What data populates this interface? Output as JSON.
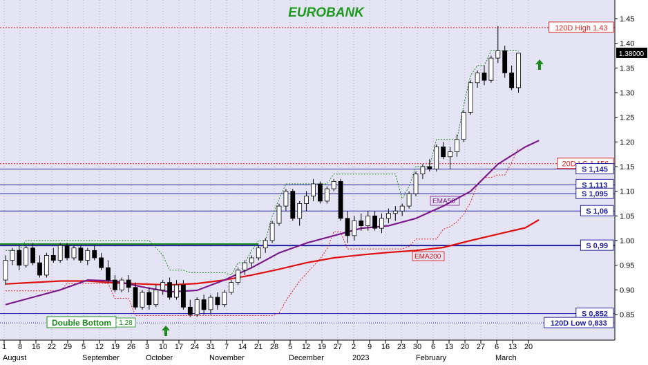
{
  "chart_data": {
    "type": "candlestick",
    "title": "EUROBANK",
    "title_color": "#1e9a1e",
    "ylim": [
      0.805,
      1.475
    ],
    "y_ticks": [
      "1.45",
      "1.40",
      "1.35",
      "1.30",
      "1.25",
      "1.20",
      "1.15",
      "1.10",
      "1.05",
      "1.00",
      "0.95",
      "0.90",
      "0.85"
    ],
    "last_price": "1.38000",
    "colors": {
      "background": "#e4e4f4",
      "up": "#ffffff",
      "down": "#000000",
      "ema50": "#7b1a8c",
      "ema200": "#e01010",
      "support": "#2020a0",
      "resistance_red": "#e02020",
      "trail": "#e02020",
      "trail_green": "#1a8a1a",
      "arrow": "#1a8a1a"
    },
    "x_ticks": [
      "1",
      "8",
      "16",
      "22",
      "29",
      "5",
      "12",
      "19",
      "26",
      "3",
      "10",
      "17",
      "24",
      "31",
      "7",
      "14",
      "21",
      "28",
      "5",
      "12",
      "19",
      "27",
      "2",
      "9",
      "16",
      "23",
      "30",
      "6",
      "13",
      "20",
      "27",
      "6",
      "13",
      "20"
    ],
    "month_labels": [
      {
        "label": "August",
        "tick": 0
      },
      {
        "label": "September",
        "tick": 5
      },
      {
        "label": "October",
        "tick": 9
      },
      {
        "label": "November",
        "tick": 13
      },
      {
        "label": "December",
        "tick": 18
      },
      {
        "label": "2023",
        "tick": 22
      },
      {
        "label": "February",
        "tick": 26
      },
      {
        "label": "March",
        "tick": 31
      }
    ],
    "levels": [
      {
        "label": "120D High 1,43",
        "value": 1.432,
        "style": "red-dotted"
      },
      {
        "label": "20D LC 1.156",
        "value": 1.156,
        "style": "red-dotted"
      },
      {
        "label": "S 1,145",
        "value": 1.145,
        "style": "support"
      },
      {
        "label": "S 1,113",
        "value": 1.113,
        "style": "support"
      },
      {
        "label": "S 1,095",
        "value": 1.095,
        "style": "support"
      },
      {
        "label": "S 1,06",
        "value": 1.06,
        "style": "support"
      },
      {
        "label": "S 0,99",
        "value": 0.99,
        "style": "support-thick"
      },
      {
        "label": "S 0,852",
        "value": 0.852,
        "style": "support"
      },
      {
        "label": "120D Low 0,833",
        "value": 0.833,
        "style": "blue-dotted"
      }
    ],
    "annotations": {
      "double_bottom": "Double Bottom",
      "double_bottom_value": "1,28",
      "ema50_label": "EMA50",
      "ema200_label": "EMA200"
    },
    "ema200": [
      [
        0,
        0.912
      ],
      [
        4,
        0.915
      ],
      [
        8,
        0.918
      ],
      [
        12,
        0.918
      ],
      [
        16,
        0.914
      ],
      [
        20,
        0.912
      ],
      [
        24,
        0.91
      ],
      [
        28,
        0.913
      ],
      [
        32,
        0.92
      ],
      [
        36,
        0.93
      ],
      [
        40,
        0.942
      ],
      [
        44,
        0.955
      ],
      [
        48,
        0.965
      ],
      [
        52,
        0.971
      ],
      [
        56,
        0.976
      ],
      [
        60,
        0.98
      ],
      [
        64,
        0.986
      ],
      [
        68,
        1.0
      ],
      [
        72,
        1.013
      ],
      [
        76,
        1.026
      ],
      [
        78,
        1.042
      ]
    ],
    "ema50": [
      [
        0,
        0.87
      ],
      [
        4,
        0.885
      ],
      [
        8,
        0.9
      ],
      [
        12,
        0.92
      ],
      [
        16,
        0.918
      ],
      [
        20,
        0.906
      ],
      [
        24,
        0.896
      ],
      [
        28,
        0.899
      ],
      [
        32,
        0.92
      ],
      [
        36,
        0.945
      ],
      [
        40,
        0.975
      ],
      [
        44,
        0.995
      ],
      [
        48,
        1.01
      ],
      [
        52,
        1.025
      ],
      [
        56,
        1.03
      ],
      [
        60,
        1.045
      ],
      [
        64,
        1.07
      ],
      [
        68,
        1.1
      ],
      [
        72,
        1.155
      ],
      [
        76,
        1.19
      ],
      [
        78,
        1.203
      ]
    ],
    "ohlc": [
      [
        0,
        0.92,
        0.97,
        0.91,
        0.96
      ],
      [
        1,
        0.96,
        0.985,
        0.95,
        0.98
      ],
      [
        2,
        0.98,
        0.99,
        0.94,
        0.95
      ],
      [
        3,
        0.95,
        0.99,
        0.945,
        0.985
      ],
      [
        4,
        0.985,
        0.995,
        0.95,
        0.955
      ],
      [
        5,
        0.955,
        0.97,
        0.925,
        0.93
      ],
      [
        6,
        0.93,
        0.975,
        0.925,
        0.97
      ],
      [
        7,
        0.97,
        0.985,
        0.955,
        0.96
      ],
      [
        8,
        0.96,
        0.995,
        0.955,
        0.99
      ],
      [
        9,
        0.99,
        0.995,
        0.96,
        0.965
      ],
      [
        10,
        0.965,
        0.99,
        0.96,
        0.985
      ],
      [
        11,
        0.985,
        0.99,
        0.955,
        0.96
      ],
      [
        12,
        0.96,
        0.985,
        0.95,
        0.98
      ],
      [
        13,
        0.98,
        0.99,
        0.96,
        0.965
      ],
      [
        14,
        0.965,
        0.975,
        0.94,
        0.945
      ],
      [
        15,
        0.945,
        0.96,
        0.915,
        0.92
      ],
      [
        16,
        0.92,
        0.93,
        0.895,
        0.9
      ],
      [
        17,
        0.9,
        0.925,
        0.895,
        0.92
      ],
      [
        18,
        0.92,
        0.93,
        0.895,
        0.905
      ],
      [
        19,
        0.905,
        0.915,
        0.86,
        0.865
      ],
      [
        20,
        0.865,
        0.9,
        0.86,
        0.895
      ],
      [
        21,
        0.895,
        0.905,
        0.86,
        0.87
      ],
      [
        22,
        0.87,
        0.91,
        0.865,
        0.9
      ],
      [
        23,
        0.9,
        0.92,
        0.89,
        0.915
      ],
      [
        24,
        0.915,
        0.925,
        0.88,
        0.885
      ],
      [
        25,
        0.885,
        0.92,
        0.88,
        0.91
      ],
      [
        26,
        0.91,
        0.92,
        0.86,
        0.865
      ],
      [
        27,
        0.865,
        0.88,
        0.845,
        0.85
      ],
      [
        28,
        0.85,
        0.885,
        0.845,
        0.88
      ],
      [
        29,
        0.88,
        0.89,
        0.85,
        0.86
      ],
      [
        30,
        0.86,
        0.89,
        0.85,
        0.885
      ],
      [
        31,
        0.885,
        0.895,
        0.86,
        0.87
      ],
      [
        32,
        0.87,
        0.9,
        0.865,
        0.895
      ],
      [
        33,
        0.895,
        0.92,
        0.89,
        0.915
      ],
      [
        34,
        0.915,
        0.945,
        0.91,
        0.94
      ],
      [
        35,
        0.94,
        0.96,
        0.93,
        0.955
      ],
      [
        36,
        0.955,
        0.97,
        0.945,
        0.965
      ],
      [
        37,
        0.965,
        0.99,
        0.96,
        0.985
      ],
      [
        38,
        0.985,
        1.005,
        0.975,
        1.0
      ],
      [
        39,
        1.0,
        1.04,
        0.995,
        1.035
      ],
      [
        40,
        1.035,
        1.075,
        1.03,
        1.07
      ],
      [
        41,
        1.07,
        1.105,
        1.06,
        1.1
      ],
      [
        42,
        1.1,
        1.105,
        1.04,
        1.045
      ],
      [
        43,
        1.045,
        1.08,
        1.03,
        1.075
      ],
      [
        44,
        1.075,
        1.1,
        1.06,
        1.09
      ],
      [
        45,
        1.09,
        1.125,
        1.08,
        1.115
      ],
      [
        46,
        1.115,
        1.12,
        1.075,
        1.08
      ],
      [
        47,
        1.08,
        1.11,
        1.075,
        1.105
      ],
      [
        48,
        1.105,
        1.125,
        1.1,
        1.12
      ],
      [
        49,
        1.12,
        1.125,
        1.04,
        1.045
      ],
      [
        50,
        1.045,
        1.06,
        0.995,
        1.01
      ],
      [
        51,
        1.01,
        1.05,
        1.0,
        1.04
      ],
      [
        52,
        1.04,
        1.055,
        1.02,
        1.03
      ],
      [
        53,
        1.03,
        1.06,
        1.02,
        1.05
      ],
      [
        54,
        1.05,
        1.06,
        1.02,
        1.025
      ],
      [
        55,
        1.025,
        1.055,
        1.015,
        1.045
      ],
      [
        56,
        1.045,
        1.065,
        1.035,
        1.055
      ],
      [
        57,
        1.055,
        1.07,
        1.04,
        1.06
      ],
      [
        58,
        1.06,
        1.075,
        1.05,
        1.07
      ],
      [
        59,
        1.07,
        1.1,
        1.065,
        1.095
      ],
      [
        60,
        1.095,
        1.14,
        1.09,
        1.135
      ],
      [
        61,
        1.135,
        1.155,
        1.125,
        1.15
      ],
      [
        62,
        1.15,
        1.165,
        1.14,
        1.145
      ],
      [
        63,
        1.145,
        1.195,
        1.14,
        1.19
      ],
      [
        64,
        1.19,
        1.2,
        1.165,
        1.17
      ],
      [
        65,
        1.17,
        1.19,
        1.145,
        1.18
      ],
      [
        66,
        1.18,
        1.215,
        1.17,
        1.205
      ],
      [
        67,
        1.205,
        1.265,
        1.2,
        1.26
      ],
      [
        68,
        1.26,
        1.325,
        1.255,
        1.32
      ],
      [
        69,
        1.32,
        1.345,
        1.31,
        1.34
      ],
      [
        70,
        1.34,
        1.355,
        1.315,
        1.325
      ],
      [
        71,
        1.325,
        1.375,
        1.32,
        1.37
      ],
      [
        72,
        1.37,
        1.435,
        1.36,
        1.385
      ],
      [
        73,
        1.385,
        1.395,
        1.33,
        1.34
      ],
      [
        74,
        1.34,
        1.355,
        1.305,
        1.31
      ],
      [
        75,
        1.31,
        1.38,
        1.3,
        1.38
      ]
    ]
  }
}
